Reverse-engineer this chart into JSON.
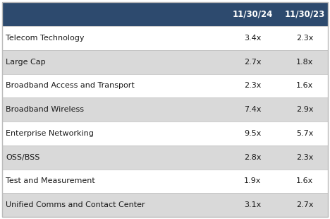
{
  "header_bg": "#2d4a6e",
  "header_text_color": "#ffffff",
  "col1_header": "11/30/24",
  "col2_header": "11/30/23",
  "rows": [
    {
      "label": "Telecom Technology",
      "val1": "3.4x",
      "val2": "2.3x",
      "shaded": false
    },
    {
      "label": "Large Cap",
      "val1": "2.7x",
      "val2": "1.8x",
      "shaded": true
    },
    {
      "label": "Broadband Access and Transport",
      "val1": "2.3x",
      "val2": "1.6x",
      "shaded": false
    },
    {
      "label": "Broadband Wireless",
      "val1": "7.4x",
      "val2": "2.9x",
      "shaded": true
    },
    {
      "label": "Enterprise Networking",
      "val1": "9.5x",
      "val2": "5.7x",
      "shaded": false
    },
    {
      "label": "OSS/BSS",
      "val1": "2.8x",
      "val2": "2.3x",
      "shaded": true
    },
    {
      "label": "Test and Measurement",
      "val1": "1.9x",
      "val2": "1.6x",
      "shaded": false
    },
    {
      "label": "Unified Comms and Contact Center",
      "val1": "3.1x",
      "val2": "2.7x",
      "shaded": true
    }
  ],
  "shaded_color": "#d9d9d9",
  "white_color": "#ffffff",
  "border_color": "#bbbbbb",
  "text_color": "#1a1a1a",
  "font_size": 8.0,
  "header_font_size": 8.5,
  "fig_width": 4.68,
  "fig_height": 3.1,
  "dpi": 100
}
